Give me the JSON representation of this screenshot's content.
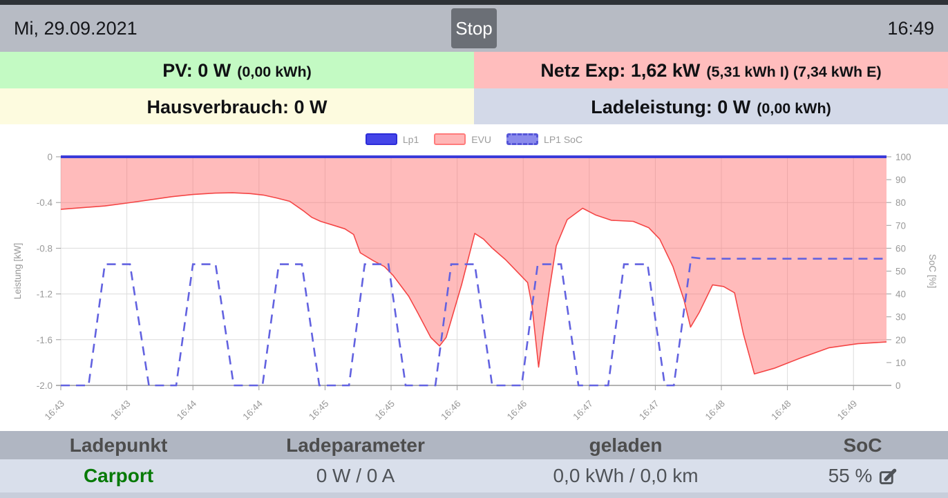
{
  "header": {
    "date": "Mi, 29.09.2021",
    "stop_label": "Stop",
    "time": "16:49"
  },
  "status_cells": {
    "pv": {
      "main": "PV: 0 W",
      "sub": "(0,00 kWh)",
      "bg_color": "#c3fac3"
    },
    "netz": {
      "main": "Netz Exp: 1,62 kW",
      "sub": "(5,31 kWh I) (7,34 kWh E)",
      "bg_color": "#ffbdbd"
    },
    "hausverbrauch": {
      "main": "Hausverbrauch: 0 W",
      "sub": "",
      "bg_color": "#fdfbdf"
    },
    "ladeleistung": {
      "main": "Ladeleistung: 0 W",
      "sub": "(0,00 kWh)",
      "bg_color": "#d3d9e8"
    }
  },
  "chart_data": {
    "type": "line",
    "title": "",
    "legend_position": "top-center",
    "grid": true,
    "legend": [
      {
        "label": "Lp1",
        "swatch_fill": "#4545e8",
        "swatch_border": "#2c2cd8",
        "style": "solid"
      },
      {
        "label": "EVU",
        "swatch_fill": "#ffb6b6",
        "swatch_border": "#ff7b7b",
        "style": "solid"
      },
      {
        "label": "LP1 SoC",
        "swatch_fill": "#8a8aec",
        "swatch_border": "#5555d8",
        "style": "dashed"
      }
    ],
    "x_axis": {
      "tick_labels": [
        "16:43",
        "16:43",
        "16:44",
        "16:44",
        "16:45",
        "16:45",
        "16:46",
        "16:46",
        "16:47",
        "16:47",
        "16:48",
        "16:48",
        "16:49"
      ],
      "tick_seconds": [
        0,
        30,
        60,
        90,
        120,
        150,
        180,
        210,
        240,
        270,
        300,
        330,
        360
      ],
      "range_seconds": [
        0,
        375
      ]
    },
    "y_axis_left": {
      "label": "Leistung [kW]",
      "ticks": [
        0,
        -0.4,
        -0.8,
        -1.2,
        -1.6,
        -2.0
      ],
      "range": [
        -2,
        0
      ]
    },
    "y_axis_right": {
      "label": "SoC [%]",
      "ticks": [
        100,
        90,
        80,
        70,
        60,
        50,
        40,
        30,
        20,
        10,
        0
      ],
      "range": [
        0,
        100
      ]
    },
    "series": [
      {
        "name": "Lp1",
        "axis": "left",
        "style": "solid",
        "color": "#3a3ad9",
        "width": 4,
        "points": [
          [
            0,
            0
          ],
          [
            375,
            0
          ]
        ]
      },
      {
        "name": "EVU",
        "axis": "left",
        "style": "area",
        "color": "#f44545",
        "fill": "rgba(255,105,105,0.45)",
        "width": 1.6,
        "points": [
          [
            0,
            -0.46
          ],
          [
            10,
            -0.445
          ],
          [
            20,
            -0.43
          ],
          [
            30,
            -0.405
          ],
          [
            41,
            -0.375
          ],
          [
            50,
            -0.35
          ],
          [
            60,
            -0.33
          ],
          [
            70,
            -0.318
          ],
          [
            78,
            -0.315
          ],
          [
            86,
            -0.322
          ],
          [
            92,
            -0.335
          ],
          [
            98,
            -0.36
          ],
          [
            104,
            -0.39
          ],
          [
            110,
            -0.47
          ],
          [
            114,
            -0.53
          ],
          [
            118,
            -0.565
          ],
          [
            124,
            -0.6
          ],
          [
            129,
            -0.63
          ],
          [
            133,
            -0.68
          ],
          [
            136,
            -0.84
          ],
          [
            142,
            -0.91
          ],
          [
            147,
            -0.96
          ],
          [
            151,
            -1.04
          ],
          [
            158,
            -1.22
          ],
          [
            162,
            -1.36
          ],
          [
            168,
            -1.58
          ],
          [
            172,
            -1.655
          ],
          [
            175,
            -1.58
          ],
          [
            182,
            -1.12
          ],
          [
            188,
            -0.67
          ],
          [
            192,
            -0.72
          ],
          [
            196,
            -0.8
          ],
          [
            202,
            -0.9
          ],
          [
            208,
            -1.02
          ],
          [
            212,
            -1.1
          ],
          [
            214,
            -1.3
          ],
          [
            217,
            -1.84
          ],
          [
            219,
            -1.55
          ],
          [
            222,
            -1.15
          ],
          [
            225,
            -0.78
          ],
          [
            230,
            -0.55
          ],
          [
            237,
            -0.45
          ],
          [
            243,
            -0.51
          ],
          [
            250,
            -0.555
          ],
          [
            260,
            -0.565
          ],
          [
            267,
            -0.62
          ],
          [
            272,
            -0.72
          ],
          [
            278,
            -0.96
          ],
          [
            283,
            -1.25
          ],
          [
            286,
            -1.49
          ],
          [
            290,
            -1.36
          ],
          [
            296,
            -1.12
          ],
          [
            301,
            -1.135
          ],
          [
            306,
            -1.19
          ],
          [
            310,
            -1.55
          ],
          [
            315,
            -1.9
          ],
          [
            324,
            -1.85
          ],
          [
            336,
            -1.76
          ],
          [
            349,
            -1.67
          ],
          [
            362,
            -1.635
          ],
          [
            375,
            -1.62
          ]
        ]
      },
      {
        "name": "LP1 SoC",
        "axis": "right",
        "style": "dashed",
        "color": "#6262e0",
        "width": 2.6,
        "points": [
          [
            0,
            0
          ],
          [
            12.6,
            0
          ],
          [
            20,
            53
          ],
          [
            31.4,
            53
          ],
          [
            40,
            0
          ],
          [
            52.4,
            0
          ],
          [
            60,
            53
          ],
          [
            70.3,
            53
          ],
          [
            78.5,
            0
          ],
          [
            91.6,
            0
          ],
          [
            99,
            53
          ],
          [
            109.5,
            53
          ],
          [
            117.4,
            0
          ],
          [
            130.9,
            0
          ],
          [
            138,
            53
          ],
          [
            148.8,
            53
          ],
          [
            156.6,
            0
          ],
          [
            170.1,
            0
          ],
          [
            177.3,
            53
          ],
          [
            188,
            53
          ],
          [
            195.9,
            0
          ],
          [
            209.3,
            0
          ],
          [
            216.6,
            53
          ],
          [
            227.2,
            53
          ],
          [
            235.1,
            0
          ],
          [
            248.6,
            0
          ],
          [
            255.8,
            53
          ],
          [
            266.5,
            53
          ],
          [
            274.3,
            0
          ],
          [
            278.4,
            0
          ],
          [
            286.3,
            56
          ],
          [
            292,
            55.4
          ],
          [
            375,
            55.4
          ]
        ]
      }
    ]
  },
  "table": {
    "headers": [
      "Ladepunkt",
      "Ladeparameter",
      "geladen",
      "SoC"
    ],
    "rows": [
      {
        "ladepunkt": "Carport",
        "ladeparameter": "0 W / 0 A",
        "geladen": "0,0 kWh / 0,0 km",
        "soc": "55 %"
      }
    ]
  },
  "colors": {
    "top_strip": "#2e3237",
    "top_bar": "#b7bbc4",
    "stop_button": "#6b6f76",
    "table_header_bg": "#b0b6c2",
    "table_row_bg": "#d9dfeb",
    "bottom_strip": "#c8cedb",
    "ladepunkt_name": "#077a07",
    "grid_line": "#dcdcdc",
    "axis_text": "#999999"
  }
}
